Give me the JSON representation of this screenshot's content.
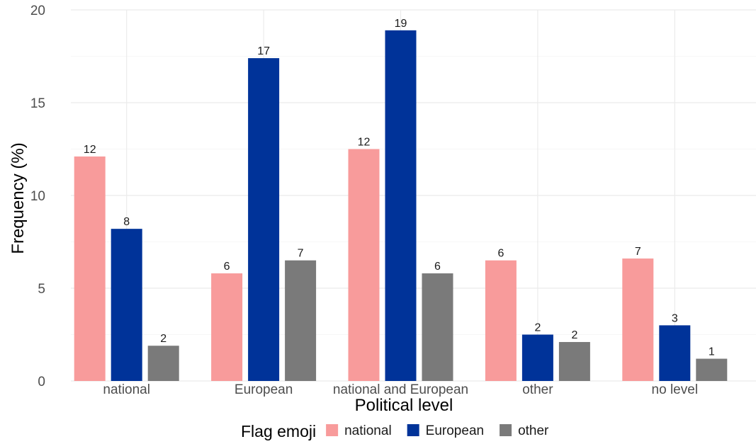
{
  "chart_data": {
    "type": "bar",
    "xlabel": "Political level",
    "ylabel": "Frequency (%)",
    "ylim": [
      0,
      20
    ],
    "yticks": [
      0,
      5,
      10,
      15,
      20
    ],
    "grid": true,
    "legend_position": "bottom",
    "categories": [
      "national",
      "European",
      "national and European",
      "other",
      "no level"
    ],
    "series": [
      {
        "name": "national",
        "color": "#f89b9b",
        "values": [
          12.1,
          5.8,
          12.5,
          6.5,
          6.6
        ],
        "labels": [
          "12",
          "6",
          "12",
          "6",
          "7"
        ]
      },
      {
        "name": "European",
        "color": "#003399",
        "values": [
          8.2,
          17.4,
          18.9,
          2.5,
          3.0
        ],
        "labels": [
          "8",
          "17",
          "19",
          "2",
          "3"
        ]
      },
      {
        "name": "other",
        "color": "#7a7a7a",
        "values": [
          1.9,
          6.5,
          5.8,
          2.1,
          1.2
        ],
        "labels": [
          "2",
          "7",
          "6",
          "2",
          "1"
        ]
      }
    ],
    "legend": {
      "title": "Flag emoji",
      "entries": [
        "national",
        "European",
        "other"
      ]
    }
  }
}
